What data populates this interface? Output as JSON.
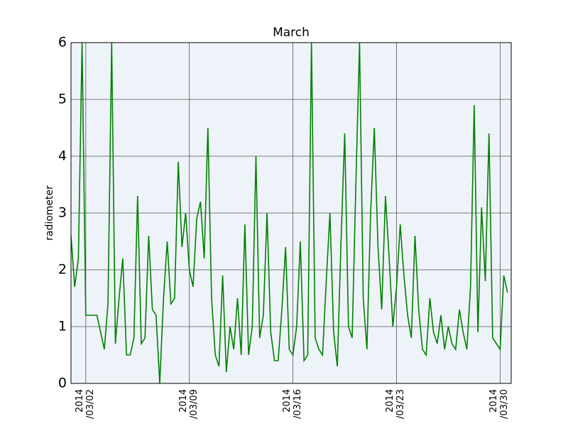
{
  "chart_data": {
    "type": "line",
    "title": "March",
    "y_label": "radiometer",
    "x": [
      "2014-03-01T00:00",
      "2014-03-01T06:00",
      "2014-03-01T12:00",
      "2014-03-01T18:00",
      "2014-03-02T00:00",
      "2014-03-02T06:00",
      "2014-03-02T12:00",
      "2014-03-02T18:00",
      "2014-03-03T00:00",
      "2014-03-03T06:00",
      "2014-03-03T12:00",
      "2014-03-03T18:00",
      "2014-03-04T00:00",
      "2014-03-04T06:00",
      "2014-03-04T12:00",
      "2014-03-04T18:00",
      "2014-03-05T00:00",
      "2014-03-05T06:00",
      "2014-03-05T12:00",
      "2014-03-05T18:00",
      "2014-03-06T00:00",
      "2014-03-06T06:00",
      "2014-03-06T12:00",
      "2014-03-06T18:00",
      "2014-03-07T00:00",
      "2014-03-07T06:00",
      "2014-03-07T12:00",
      "2014-03-07T18:00",
      "2014-03-08T00:00",
      "2014-03-08T06:00",
      "2014-03-08T12:00",
      "2014-03-08T18:00",
      "2014-03-09T00:00",
      "2014-03-09T06:00",
      "2014-03-09T12:00",
      "2014-03-09T18:00",
      "2014-03-10T00:00",
      "2014-03-10T06:00",
      "2014-03-10T12:00",
      "2014-03-10T18:00",
      "2014-03-11T00:00",
      "2014-03-11T06:00",
      "2014-03-11T12:00",
      "2014-03-11T18:00",
      "2014-03-12T00:00",
      "2014-03-12T06:00",
      "2014-03-12T12:00",
      "2014-03-12T18:00",
      "2014-03-13T00:00",
      "2014-03-13T06:00",
      "2014-03-13T12:00",
      "2014-03-13T18:00",
      "2014-03-14T00:00",
      "2014-03-14T06:00",
      "2014-03-14T12:00",
      "2014-03-14T18:00",
      "2014-03-15T00:00",
      "2014-03-15T06:00",
      "2014-03-15T12:00",
      "2014-03-15T18:00",
      "2014-03-16T00:00",
      "2014-03-16T06:00",
      "2014-03-16T12:00",
      "2014-03-16T18:00",
      "2014-03-17T00:00",
      "2014-03-17T06:00",
      "2014-03-17T12:00",
      "2014-03-17T18:00",
      "2014-03-18T00:00",
      "2014-03-18T06:00",
      "2014-03-18T12:00",
      "2014-03-18T18:00",
      "2014-03-19T00:00",
      "2014-03-19T06:00",
      "2014-03-19T12:00",
      "2014-03-19T18:00",
      "2014-03-20T00:00",
      "2014-03-20T06:00",
      "2014-03-20T12:00",
      "2014-03-20T18:00",
      "2014-03-21T00:00",
      "2014-03-21T06:00",
      "2014-03-21T12:00",
      "2014-03-21T18:00",
      "2014-03-22T00:00",
      "2014-03-22T06:00",
      "2014-03-22T12:00",
      "2014-03-22T18:00",
      "2014-03-23T00:00",
      "2014-03-23T06:00",
      "2014-03-23T12:00",
      "2014-03-23T18:00",
      "2014-03-24T00:00",
      "2014-03-24T06:00",
      "2014-03-24T12:00",
      "2014-03-24T18:00",
      "2014-03-25T00:00",
      "2014-03-25T06:00",
      "2014-03-25T12:00",
      "2014-03-25T18:00",
      "2014-03-26T00:00",
      "2014-03-26T06:00",
      "2014-03-26T12:00",
      "2014-03-26T18:00",
      "2014-03-27T00:00",
      "2014-03-27T06:00",
      "2014-03-27T12:00",
      "2014-03-27T18:00",
      "2014-03-28T00:00",
      "2014-03-28T06:00",
      "2014-03-28T12:00",
      "2014-03-28T18:00",
      "2014-03-29T00:00",
      "2014-03-29T06:00",
      "2014-03-29T12:00",
      "2014-03-29T18:00",
      "2014-03-30T00:00",
      "2014-03-30T06:00",
      "2014-03-30T12:00"
    ],
    "series": [
      {
        "name": "radiometer",
        "color": "#008000",
        "values": [
          2.6,
          1.7,
          2.2,
          6,
          1.2,
          1.2,
          1.2,
          1.2,
          0.9,
          0.6,
          1.4,
          6,
          0.7,
          1.5,
          2.2,
          0.5,
          0.5,
          0.8,
          3.3,
          0.7,
          0.8,
          2.6,
          1.3,
          1.2,
          0,
          1.5,
          2.5,
          1.4,
          1.5,
          3.9,
          2.4,
          3.0,
          2.0,
          1.7,
          2.9,
          3.2,
          2.2,
          4.5,
          1.5,
          0.5,
          0.3,
          1.9,
          0.2,
          1.0,
          0.6,
          1.5,
          0.5,
          2.8,
          0.5,
          1.0,
          4.0,
          0.8,
          1.2,
          3.0,
          0.9,
          0.4,
          0.4,
          1.3,
          2.4,
          0.6,
          0.5,
          1.0,
          2.5,
          0.4,
          0.5,
          6,
          0.8,
          0.6,
          0.5,
          1.8,
          3.0,
          0.9,
          0.3,
          2.5,
          4.4,
          1.0,
          0.8,
          3.5,
          6,
          1.5,
          0.6,
          3.0,
          4.5,
          2.4,
          1.3,
          3.3,
          2.2,
          1.0,
          1.7,
          2.8,
          1.9,
          1.2,
          0.8,
          2.6,
          1.3,
          0.6,
          0.5,
          1.5,
          0.9,
          0.7,
          1.2,
          0.6,
          1.0,
          0.7,
          0.6,
          1.3,
          0.9,
          0.6,
          1.7,
          4.9,
          0.9,
          3.1,
          1.8,
          4.4,
          0.8,
          0.7,
          0.6,
          1.9,
          1.6
        ]
      }
    ],
    "xlim": [
      "2014-03-01T00:00",
      "2014-03-30T18:00"
    ],
    "xticks": [
      {
        "value": "2014-03-02T00:00",
        "label": "2014\n/03/02"
      },
      {
        "value": "2014-03-09T00:00",
        "label": "2014\n/03/09"
      },
      {
        "value": "2014-03-16T00:00",
        "label": "2014\n/03/16"
      },
      {
        "value": "2014-03-23T00:00",
        "label": "2014\n/03/23"
      },
      {
        "value": "2014-03-30T00:00",
        "label": "2014\n/03/30"
      }
    ],
    "ylim": [
      0,
      6
    ],
    "yticks": [
      0,
      1,
      2,
      3,
      4,
      5,
      6
    ],
    "grid": true
  }
}
